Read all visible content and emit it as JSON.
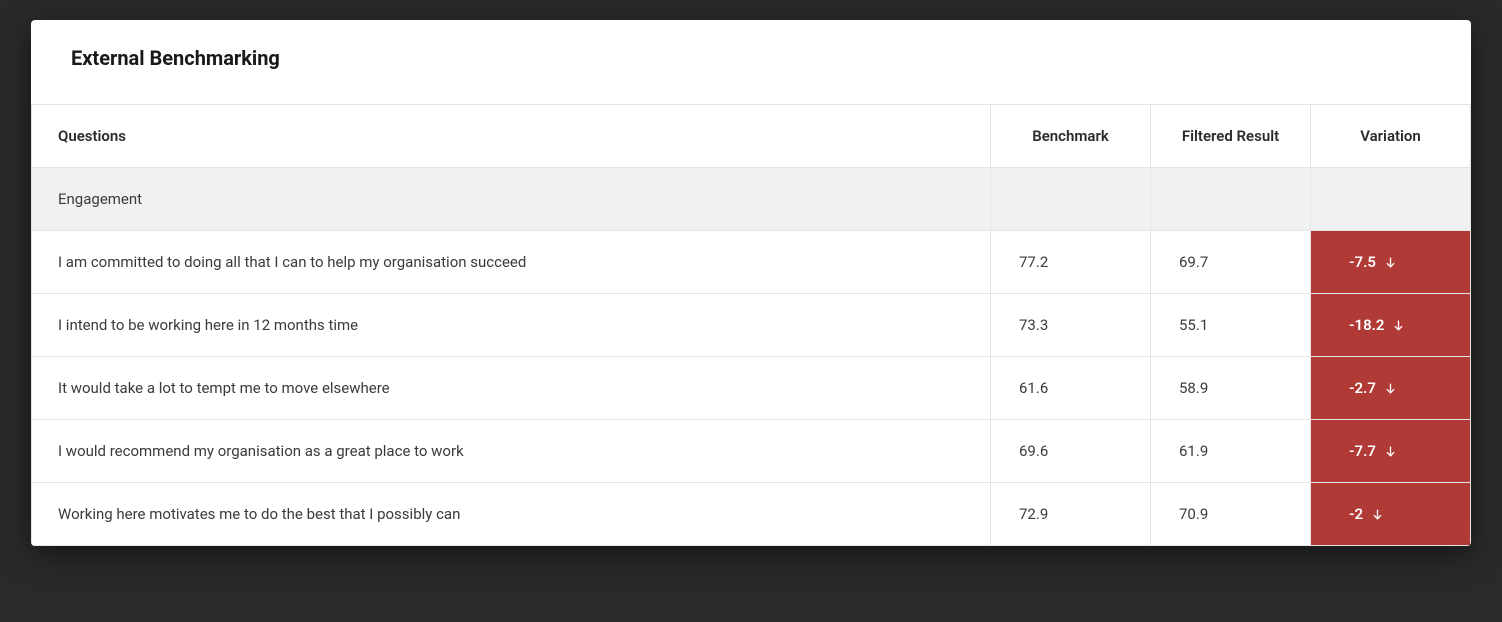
{
  "title": "External Benchmarking",
  "columns": {
    "questions": "Questions",
    "benchmark": "Benchmark",
    "filtered": "Filtered Result",
    "variation": "Variation"
  },
  "category": "Engagement",
  "variation_cell_bg": "#b03a36",
  "variation_cell_text": "#ffffff",
  "rows": [
    {
      "question": "I am committed to doing all that I can to help my organisation succeed",
      "benchmark": "77.2",
      "filtered": "69.7",
      "variation": "-7.5",
      "direction": "down"
    },
    {
      "question": "I intend to be working here in 12 months time",
      "benchmark": "73.3",
      "filtered": "55.1",
      "variation": "-18.2",
      "direction": "down"
    },
    {
      "question": "It would take a lot to tempt me to move elsewhere",
      "benchmark": "61.6",
      "filtered": "58.9",
      "variation": "-2.7",
      "direction": "down"
    },
    {
      "question": "I would recommend my organisation as a great place to work",
      "benchmark": "69.6",
      "filtered": "61.9",
      "variation": "-7.7",
      "direction": "down"
    },
    {
      "question": "Working here motivates me to do the best that I possibly can",
      "benchmark": "72.9",
      "filtered": "70.9",
      "variation": "-2",
      "direction": "down"
    }
  ]
}
